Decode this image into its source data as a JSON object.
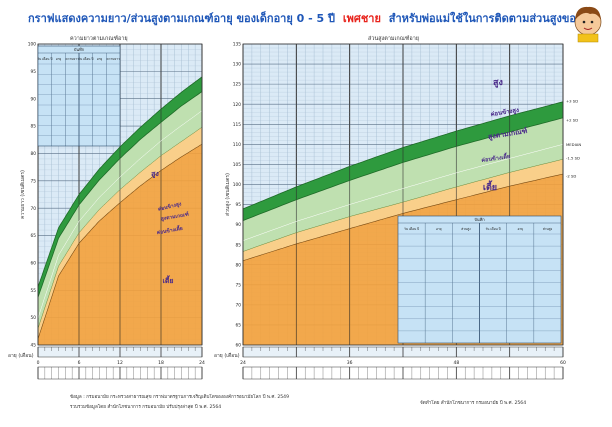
{
  "header": {
    "title_part1": "กราฟแสดงความยาว/ส่วนสูงตามเกณฑ์อายุ ของเด็กอายุ 0 - 5 ปี",
    "title_highlight": "เพศชาย",
    "title_part2": "สำหรับพ่อแม่ใช้ในการติดตามส่วนสูงของลูก"
  },
  "colors": {
    "title_blue": "#1f57b8",
    "title_red": "#e8231c",
    "orange_zone": "#f4a13a",
    "green_normal": "#bfe0b0",
    "green_band": "#2e9a3e",
    "grid_bg": "#dbeaf6",
    "table_bg": "#c6e2f5",
    "zone_label": "#4a2a8a"
  },
  "chart_data": [
    {
      "type": "area",
      "title": "ความยาวตามเกณฑ์อายุ",
      "ylabel": "ความยาว (เซนติเมตร)",
      "xlabel": "อายุ (เดือน)",
      "x_unit": "months",
      "xlim": [
        0,
        24
      ],
      "ylim": [
        45,
        100
      ],
      "y_ticks": [
        45,
        50,
        55,
        60,
        65,
        70,
        75,
        80,
        85,
        90,
        95,
        100
      ],
      "x_ticks": [
        0,
        6,
        12,
        18,
        24
      ],
      "x_tick_labels": [
        "0",
        "6",
        "12",
        "18",
        "24"
      ],
      "grid": true,
      "x": [
        0,
        3,
        6,
        9,
        12,
        15,
        18,
        21,
        24
      ],
      "series": [
        {
          "key": "p3sd",
          "values": [
            55.6,
            66.4,
            72.5,
            77.2,
            81.2,
            84.8,
            88.1,
            91.2,
            94.0
          ]
        },
        {
          "key": "p2sd",
          "values": [
            53.7,
            64.5,
            70.6,
            75.2,
            79.1,
            82.6,
            85.7,
            88.7,
            91.3
          ]
        },
        {
          "key": "median",
          "values": [
            49.9,
            61.4,
            67.6,
            72.0,
            75.7,
            79.1,
            82.3,
            85.1,
            87.8
          ]
        },
        {
          "key": "m15sd",
          "values": [
            48.0,
            59.4,
            65.5,
            69.8,
            73.4,
            76.6,
            79.6,
            82.2,
            84.8
          ]
        },
        {
          "key": "m2sd",
          "values": [
            46.1,
            57.6,
            63.6,
            67.7,
            71.0,
            74.1,
            76.9,
            79.4,
            81.7
          ]
        }
      ],
      "zone_labels": [
        "สูง",
        "ค่อนข้างสูง",
        "สูงตามเกณฑ์",
        "ค่อนข้างเตี้ย",
        "เตี้ย"
      ],
      "record_table": {
        "title": "บันทึก",
        "headers": [
          "วัน เดือน ปี",
          "อายุ",
          "ความยาว",
          "วัน เดือน ปี",
          "อายุ",
          "ความยาว"
        ]
      }
    },
    {
      "type": "area",
      "title": "ส่วนสูงตามเกณฑ์อายุ",
      "ylabel": "ส่วนสูง (เซนติเมตร)",
      "xlabel": "อายุ (เดือน)",
      "x_unit": "months",
      "xlim": [
        24,
        60
      ],
      "ylim": [
        60,
        135
      ],
      "y_ticks": [
        60,
        65,
        70,
        75,
        80,
        85,
        90,
        95,
        100,
        105,
        110,
        115,
        120,
        125,
        130,
        135
      ],
      "x_ticks": [
        24,
        36,
        48,
        60
      ],
      "x_tick_labels": [
        "24",
        "36",
        "48",
        "60"
      ],
      "grid": true,
      "x": [
        24,
        30,
        36,
        42,
        48,
        54,
        60
      ],
      "series": [
        {
          "key": "p3sd",
          "values": [
            93.9,
            99.4,
            104.5,
            109.2,
            113.3,
            117.1,
            120.6
          ]
        },
        {
          "key": "p2sd",
          "values": [
            91.0,
            96.2,
            101.0,
            105.5,
            109.5,
            113.1,
            116.6
          ]
        },
        {
          "key": "median",
          "values": [
            86.0,
            90.8,
            95.0,
            99.0,
            102.9,
            106.5,
            110.0
          ]
        },
        {
          "key": "m15sd",
          "values": [
            83.3,
            88.0,
            92.0,
            95.6,
            99.4,
            103.0,
            106.3
          ]
        },
        {
          "key": "m2sd",
          "values": [
            81.0,
            85.2,
            89.0,
            92.8,
            96.2,
            99.6,
            102.6
          ]
        }
      ],
      "line_labels": [
        "+3 SD",
        "+2 SD",
        "MEDIAN",
        "-1.5 SD",
        "-2 SD"
      ],
      "zone_labels": [
        "สูง",
        "ค่อนข้างสูง",
        "สูงตามเกณฑ์",
        "ค่อนข้างเตี้ย",
        "เตี้ย"
      ],
      "record_table": {
        "title": "บันทึก",
        "headers": [
          "วัน เดือน ปี",
          "อายุ",
          "ส่วนสูง",
          "วัน เดือน ปี",
          "อายุ",
          "ส่วนสูง"
        ]
      }
    }
  ],
  "footer": {
    "left_line1": "ข้อมูล : กรมอนามัย กระทรวงสาธารณสุข กราฟมาตรฐานการเจริญเติบโตขององค์การอนามัยโลก ปี พ.ศ. 2549",
    "left_line2": "รวบรวมข้อมูลโดย สำนักโภชนาการ กรมอนามัย ปรับปรุงล่าสุด ปี พ.ศ. 2564",
    "right_line": "จัดทำโดย สำนักโภชนาการ กรมอนามัย ปี พ.ศ. 2564"
  }
}
